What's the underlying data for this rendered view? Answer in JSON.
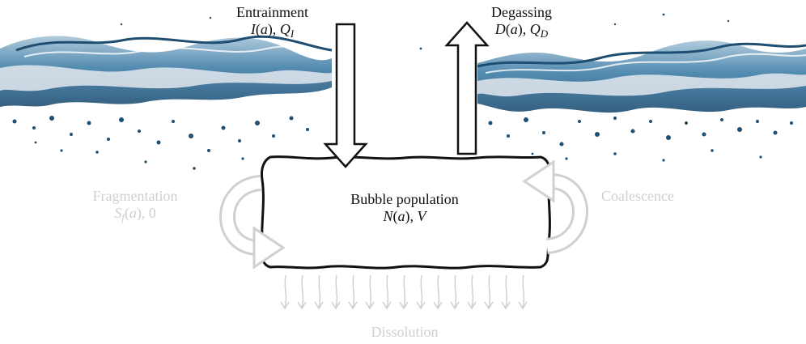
{
  "labels": {
    "entrainment": {
      "title": "Entrainment",
      "func": "I",
      "arg": "a",
      "rate": "Q",
      "rate_sub": "I"
    },
    "degassing": {
      "title": "Degassing",
      "func": "D",
      "arg": "a",
      "rate": "Q",
      "rate_sub": "D"
    },
    "bubble_population": {
      "title": "Bubble population",
      "func": "N",
      "arg": "a",
      "volume": "V"
    },
    "fragmentation": {
      "title": "Fragmentation",
      "func": "S",
      "func_sub": "f",
      "arg": "a",
      "rate": "0"
    },
    "coalescence": {
      "title": "Coalescence"
    },
    "dissolution": {
      "title": "Dissolution"
    }
  },
  "colors": {
    "water_dark": "#1f4e73",
    "water_mid": "#3f7ea8",
    "water_light": "#a9c6d8",
    "foam": "#e3e9ee",
    "text_dark": "#111111",
    "text_faint": "#cfcfcf",
    "arrow_faint": "#d0d0d0"
  }
}
